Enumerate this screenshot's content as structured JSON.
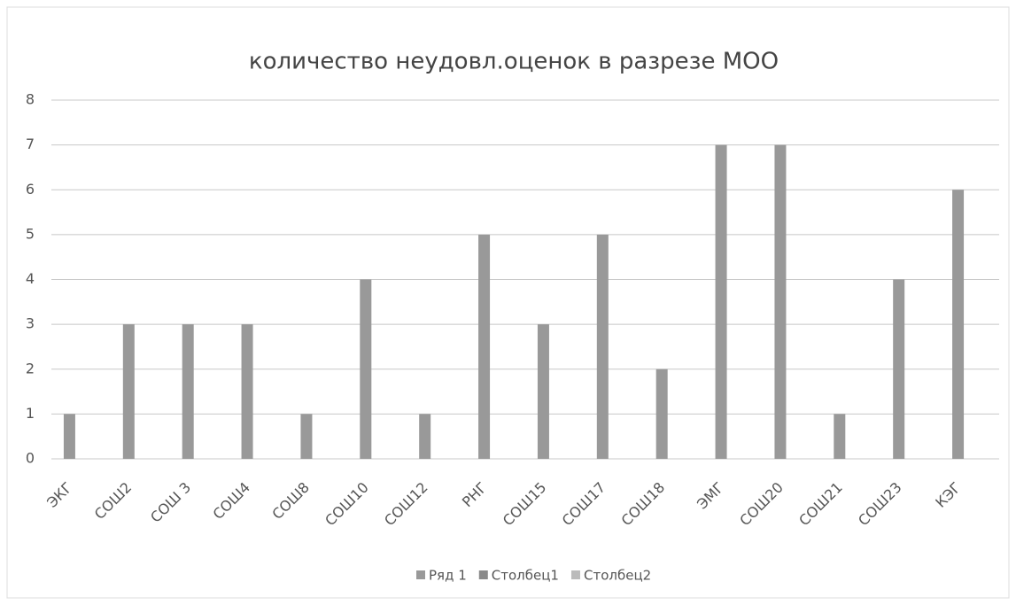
{
  "chart_data": {
    "type": "bar",
    "title": "количество неудовл.оценок в разрезе МОО",
    "categories": [
      "ЭКГ",
      "СОШ2",
      "СОШ 3",
      "СОШ4",
      "СОШ8",
      "СОШ10",
      "СОШ12",
      "РНГ",
      "СОШ15",
      "СОШ17",
      "СОШ18",
      "ЭМГ",
      "СОШ20",
      "СОШ21",
      "СОШ23",
      "КЭГ"
    ],
    "series": [
      {
        "name": "Ряд 1",
        "color": "#999999",
        "values": [
          1,
          3,
          3,
          3,
          1,
          4,
          1,
          5,
          3,
          5,
          2,
          7,
          7,
          1,
          4,
          6
        ]
      },
      {
        "name": "Столбец1",
        "color": "#8a8a8a",
        "values": [
          null,
          null,
          null,
          null,
          null,
          null,
          null,
          null,
          null,
          null,
          null,
          null,
          null,
          null,
          null,
          null
        ]
      },
      {
        "name": "Столбец2",
        "color": "#bbbbbb",
        "values": [
          null,
          null,
          null,
          null,
          null,
          null,
          null,
          null,
          null,
          null,
          null,
          null,
          null,
          null,
          null,
          null
        ]
      }
    ],
    "ylim": [
      0,
      8
    ],
    "yticks": [
      0,
      1,
      2,
      3,
      4,
      5,
      6,
      7,
      8
    ],
    "grid": true,
    "legend": "bottom"
  }
}
